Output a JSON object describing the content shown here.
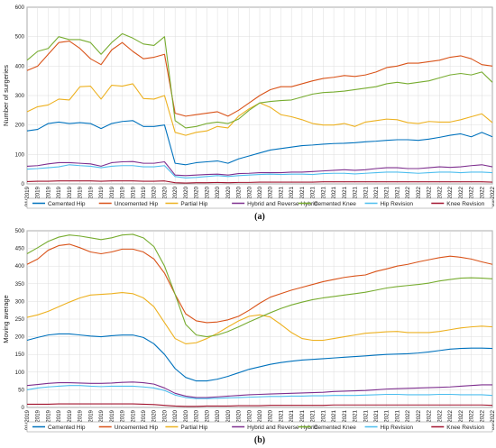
{
  "chart_data": [
    {
      "type": "line",
      "panel_label": "(a)",
      "ylabel": "Number of surgeries",
      "xlabel": "",
      "ylim": [
        0,
        600
      ],
      "yticks": [
        0,
        100,
        200,
        300,
        400,
        500,
        600
      ],
      "grid": true,
      "legend_position": "bottom",
      "x": [
        "01/2019",
        "02/2019",
        "03/2019",
        "04/2019",
        "05/2019",
        "06/2019",
        "07/2019",
        "08/2019",
        "09/2019",
        "10/2019",
        "11/2019",
        "12/2019",
        "01/2020",
        "02/2020",
        "03/2020",
        "04/2020",
        "05/2020",
        "06/2020",
        "07/2020",
        "08/2020",
        "09/2020",
        "10/2020",
        "11/2020",
        "12/2020",
        "01/2021",
        "02/2021",
        "03/2021",
        "04/2021",
        "05/2021",
        "06/2021",
        "07/2021",
        "08/2021",
        "09/2021",
        "10/2021",
        "11/2021",
        "12/2021",
        "01/2022",
        "02/2022",
        "03/2022",
        "04/2022",
        "05/2022",
        "06/2022",
        "07/2022",
        "08/2022",
        "09/2022"
      ],
      "series": [
        {
          "name": "Cemented Hip",
          "color": "#0072BD",
          "values": [
            180,
            185,
            205,
            210,
            205,
            208,
            205,
            188,
            205,
            212,
            215,
            195,
            195,
            200,
            70,
            65,
            72,
            75,
            78,
            70,
            85,
            95,
            105,
            115,
            120,
            125,
            130,
            132,
            135,
            137,
            138,
            140,
            143,
            145,
            148,
            150,
            150,
            148,
            152,
            158,
            165,
            170,
            160,
            175,
            160
          ]
        },
        {
          "name": "Uncemented Hip",
          "color": "#D95319",
          "values": [
            385,
            400,
            440,
            480,
            485,
            460,
            425,
            405,
            455,
            480,
            450,
            425,
            430,
            440,
            240,
            230,
            235,
            240,
            245,
            230,
            250,
            275,
            300,
            320,
            330,
            330,
            340,
            350,
            358,
            362,
            368,
            365,
            370,
            380,
            395,
            400,
            410,
            410,
            415,
            420,
            430,
            435,
            425,
            405,
            400
          ]
        },
        {
          "name": "Partial Hip",
          "color": "#EDB120",
          "values": [
            245,
            262,
            268,
            288,
            285,
            330,
            332,
            288,
            335,
            332,
            340,
            290,
            288,
            300,
            175,
            165,
            175,
            180,
            195,
            190,
            230,
            255,
            275,
            260,
            235,
            228,
            218,
            205,
            200,
            200,
            205,
            195,
            210,
            215,
            220,
            218,
            208,
            205,
            212,
            210,
            210,
            218,
            228,
            238,
            208
          ]
        },
        {
          "name": "Hybrid and Reverse Hybrid",
          "color": "#7E2F8E",
          "values": [
            60,
            62,
            68,
            72,
            72,
            70,
            68,
            60,
            72,
            75,
            76,
            70,
            70,
            75,
            30,
            28,
            30,
            32,
            33,
            30,
            35,
            36,
            38,
            38,
            38,
            40,
            40,
            42,
            44,
            46,
            48,
            46,
            48,
            52,
            55,
            55,
            52,
            52,
            55,
            58,
            56,
            58,
            62,
            65,
            58
          ]
        },
        {
          "name": "Cemented Knee",
          "color": "#77AC30",
          "values": [
            420,
            450,
            460,
            500,
            490,
            490,
            480,
            440,
            480,
            510,
            495,
            475,
            470,
            500,
            215,
            190,
            195,
            205,
            210,
            205,
            220,
            250,
            275,
            280,
            283,
            285,
            295,
            305,
            310,
            312,
            315,
            320,
            325,
            330,
            340,
            345,
            340,
            345,
            350,
            360,
            370,
            375,
            370,
            380,
            345
          ]
        },
        {
          "name": "Hip Revision",
          "color": "#4DBEEE",
          "values": [
            50,
            52,
            55,
            58,
            65,
            62,
            60,
            55,
            60,
            62,
            62,
            58,
            58,
            62,
            25,
            20,
            22,
            25,
            28,
            25,
            28,
            30,
            32,
            33,
            32,
            33,
            33,
            32,
            35,
            36,
            36,
            34,
            36,
            38,
            40,
            40,
            38,
            36,
            38,
            40,
            40,
            38,
            40,
            40,
            38
          ]
        },
        {
          "name": "Knee Revision",
          "color": "#A2142F",
          "values": [
            8,
            9,
            9,
            10,
            10,
            10,
            10,
            9,
            10,
            10,
            10,
            9,
            9,
            10,
            4,
            3,
            4,
            4,
            5,
            4,
            5,
            5,
            6,
            6,
            6,
            6,
            6,
            6,
            7,
            7,
            7,
            7,
            7,
            7,
            7,
            7,
            7,
            7,
            7,
            7,
            7,
            7,
            7,
            7,
            6
          ]
        }
      ]
    },
    {
      "type": "line",
      "panel_label": "(b)",
      "ylabel": "Moving average",
      "xlabel": "",
      "ylim": [
        0,
        500
      ],
      "yticks": [
        0,
        50,
        100,
        150,
        200,
        250,
        300,
        350,
        400,
        450,
        500
      ],
      "grid": true,
      "legend_position": "bottom",
      "x": [
        "01/2019",
        "02/2019",
        "03/2019",
        "04/2019",
        "05/2019",
        "06/2019",
        "07/2019",
        "08/2019",
        "09/2019",
        "10/2019",
        "11/2019",
        "12/2019",
        "01/2020",
        "02/2020",
        "03/2020",
        "04/2020",
        "05/2020",
        "06/2020",
        "07/2020",
        "08/2020",
        "09/2020",
        "10/2020",
        "11/2020",
        "12/2020",
        "01/2021",
        "02/2021",
        "03/2021",
        "04/2021",
        "05/2021",
        "06/2021",
        "07/2021",
        "08/2021",
        "09/2021",
        "10/2021",
        "11/2021",
        "12/2021",
        "01/2022",
        "02/2022",
        "03/2022",
        "04/2022",
        "05/2022",
        "06/2022",
        "07/2022",
        "08/2022",
        "09/2022"
      ],
      "series": [
        {
          "name": "Cemented Hip",
          "color": "#0072BD",
          "values": [
            190,
            198,
            205,
            208,
            208,
            205,
            202,
            200,
            203,
            205,
            205,
            198,
            180,
            150,
            110,
            85,
            75,
            75,
            80,
            88,
            98,
            108,
            115,
            122,
            127,
            131,
            134,
            136,
            138,
            140,
            142,
            144,
            146,
            148,
            150,
            151,
            152,
            154,
            157,
            161,
            165,
            167,
            168,
            168,
            167
          ]
        },
        {
          "name": "Uncemented Hip",
          "color": "#D95319",
          "values": [
            405,
            420,
            445,
            458,
            462,
            452,
            440,
            435,
            440,
            448,
            448,
            440,
            420,
            380,
            320,
            265,
            245,
            240,
            242,
            248,
            258,
            275,
            295,
            312,
            322,
            332,
            340,
            348,
            356,
            362,
            368,
            372,
            375,
            385,
            392,
            400,
            405,
            412,
            418,
            424,
            428,
            425,
            420,
            412,
            405
          ]
        },
        {
          "name": "Partial Hip",
          "color": "#EDB120",
          "values": [
            255,
            262,
            272,
            285,
            298,
            310,
            318,
            320,
            322,
            325,
            322,
            310,
            285,
            240,
            195,
            180,
            183,
            195,
            210,
            228,
            245,
            258,
            262,
            256,
            235,
            212,
            195,
            190,
            190,
            195,
            200,
            205,
            210,
            212,
            214,
            215,
            212,
            212,
            212,
            215,
            220,
            225,
            228,
            230,
            228
          ]
        },
        {
          "name": "Hybrid and Reverse Hybrid",
          "color": "#7E2F8E",
          "values": [
            62,
            65,
            68,
            70,
            70,
            69,
            68,
            68,
            69,
            71,
            72,
            70,
            66,
            55,
            40,
            32,
            28,
            28,
            30,
            32,
            34,
            36,
            37,
            38,
            39,
            40,
            41,
            42,
            43,
            45,
            46,
            47,
            48,
            50,
            52,
            53,
            54,
            55,
            56,
            57,
            58,
            60,
            62,
            64,
            64
          ]
        },
        {
          "name": "Cemented Knee",
          "color": "#77AC30",
          "values": [
            435,
            452,
            470,
            482,
            488,
            485,
            480,
            475,
            480,
            488,
            490,
            480,
            455,
            400,
            320,
            235,
            205,
            200,
            205,
            215,
            228,
            242,
            255,
            268,
            280,
            290,
            298,
            305,
            310,
            314,
            318,
            322,
            326,
            332,
            338,
            342,
            345,
            348,
            352,
            358,
            362,
            366,
            367,
            366,
            364
          ]
        },
        {
          "name": "Hip Revision",
          "color": "#4DBEEE",
          "values": [
            50,
            55,
            58,
            60,
            62,
            62,
            60,
            59,
            60,
            60,
            60,
            58,
            55,
            48,
            35,
            28,
            25,
            25,
            26,
            27,
            28,
            29,
            30,
            31,
            31,
            32,
            32,
            33,
            33,
            34,
            34,
            34,
            35,
            36,
            37,
            37,
            36,
            36,
            36,
            37,
            37,
            36,
            36,
            36,
            34
          ]
        },
        {
          "name": "Knee Revision",
          "color": "#A2142F",
          "values": [
            9,
            9,
            9,
            10,
            10,
            10,
            10,
            10,
            10,
            10,
            10,
            9,
            8,
            6,
            4,
            3,
            3,
            4,
            4,
            4,
            5,
            5,
            5,
            6,
            6,
            6,
            6,
            6,
            6,
            7,
            7,
            7,
            7,
            7,
            7,
            7,
            7,
            7,
            7,
            7,
            7,
            7,
            7,
            7,
            6
          ]
        }
      ]
    }
  ]
}
